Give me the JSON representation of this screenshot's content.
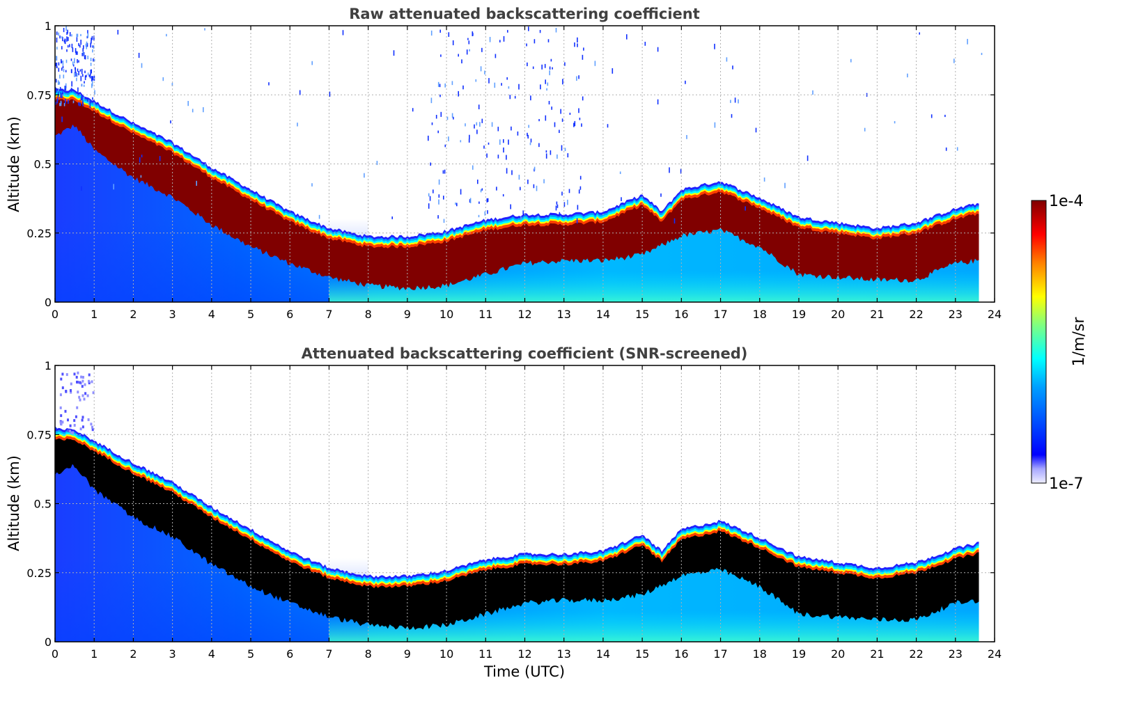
{
  "chart_data": [
    {
      "type": "heatmap",
      "title": "Raw attenuated backscattering coefficient",
      "xlabel": "",
      "ylabel": "Altitude (km)",
      "xlim": [
        0,
        24
      ],
      "ylim": [
        0,
        1
      ],
      "x_ticks": [
        "0",
        "1",
        "2",
        "3",
        "4",
        "5",
        "6",
        "7",
        "8",
        "9",
        "10",
        "11",
        "12",
        "13",
        "14",
        "15",
        "16",
        "17",
        "18",
        "19",
        "20",
        "21",
        "22",
        "23",
        "24"
      ],
      "y_ticks": [
        "0",
        "0.25",
        "0.5",
        "0.75",
        "1"
      ],
      "grid": true,
      "data_end_time": 23.6,
      "layer_top_km": [
        [
          0,
          0.74
        ],
        [
          0.5,
          0.74
        ],
        [
          1,
          0.7
        ],
        [
          2,
          0.62
        ],
        [
          3,
          0.55
        ],
        [
          4,
          0.46
        ],
        [
          5,
          0.38
        ],
        [
          6,
          0.3
        ],
        [
          7,
          0.24
        ],
        [
          8,
          0.21
        ],
        [
          9,
          0.21
        ],
        [
          10,
          0.23
        ],
        [
          11,
          0.27
        ],
        [
          12,
          0.29
        ],
        [
          13,
          0.29
        ],
        [
          14,
          0.3
        ],
        [
          15,
          0.36
        ],
        [
          15.5,
          0.3
        ],
        [
          16,
          0.38
        ],
        [
          17,
          0.41
        ],
        [
          18,
          0.35
        ],
        [
          19,
          0.28
        ],
        [
          20,
          0.26
        ],
        [
          21,
          0.24
        ],
        [
          22,
          0.26
        ],
        [
          23,
          0.31
        ],
        [
          23.6,
          0.33
        ]
      ],
      "layer_bottom_km": [
        [
          0,
          0.6
        ],
        [
          0.5,
          0.64
        ],
        [
          1,
          0.55
        ],
        [
          2,
          0.45
        ],
        [
          3,
          0.38
        ],
        [
          4,
          0.28
        ],
        [
          5,
          0.2
        ],
        [
          6,
          0.14
        ],
        [
          7,
          0.09
        ],
        [
          8,
          0.06
        ],
        [
          9,
          0.05
        ],
        [
          10,
          0.06
        ],
        [
          11,
          0.1
        ],
        [
          12,
          0.14
        ],
        [
          13,
          0.15
        ],
        [
          14,
          0.15
        ],
        [
          15,
          0.17
        ],
        [
          16,
          0.24
        ],
        [
          17,
          0.26
        ],
        [
          18,
          0.2
        ],
        [
          19,
          0.1
        ],
        [
          20,
          0.09
        ],
        [
          21,
          0.08
        ],
        [
          22,
          0.08
        ],
        [
          23,
          0.14
        ],
        [
          23.6,
          0.15
        ]
      ],
      "saturated_color": "#800000"
    },
    {
      "type": "heatmap",
      "title": "Attenuated backscattering coefficient (SNR-screened)",
      "xlabel": "Time (UTC)",
      "ylabel": "Altitude (km)",
      "xlim": [
        0,
        24
      ],
      "ylim": [
        0,
        1
      ],
      "x_ticks": [
        "0",
        "1",
        "2",
        "3",
        "4",
        "5",
        "6",
        "7",
        "8",
        "9",
        "10",
        "11",
        "12",
        "13",
        "14",
        "15",
        "16",
        "17",
        "18",
        "19",
        "20",
        "21",
        "22",
        "23",
        "24"
      ],
      "y_ticks": [
        "0",
        "0.25",
        "0.5",
        "0.75",
        "1"
      ],
      "grid": true,
      "data_end_time": 23.6,
      "saturated_color": "#000000"
    }
  ],
  "colorbar": {
    "label": "1/m/sr",
    "max_label": "1e-4",
    "min_label": "1e-7",
    "scale": "log",
    "range": [
      1e-07,
      0.0001
    ],
    "colormap": "jet"
  }
}
